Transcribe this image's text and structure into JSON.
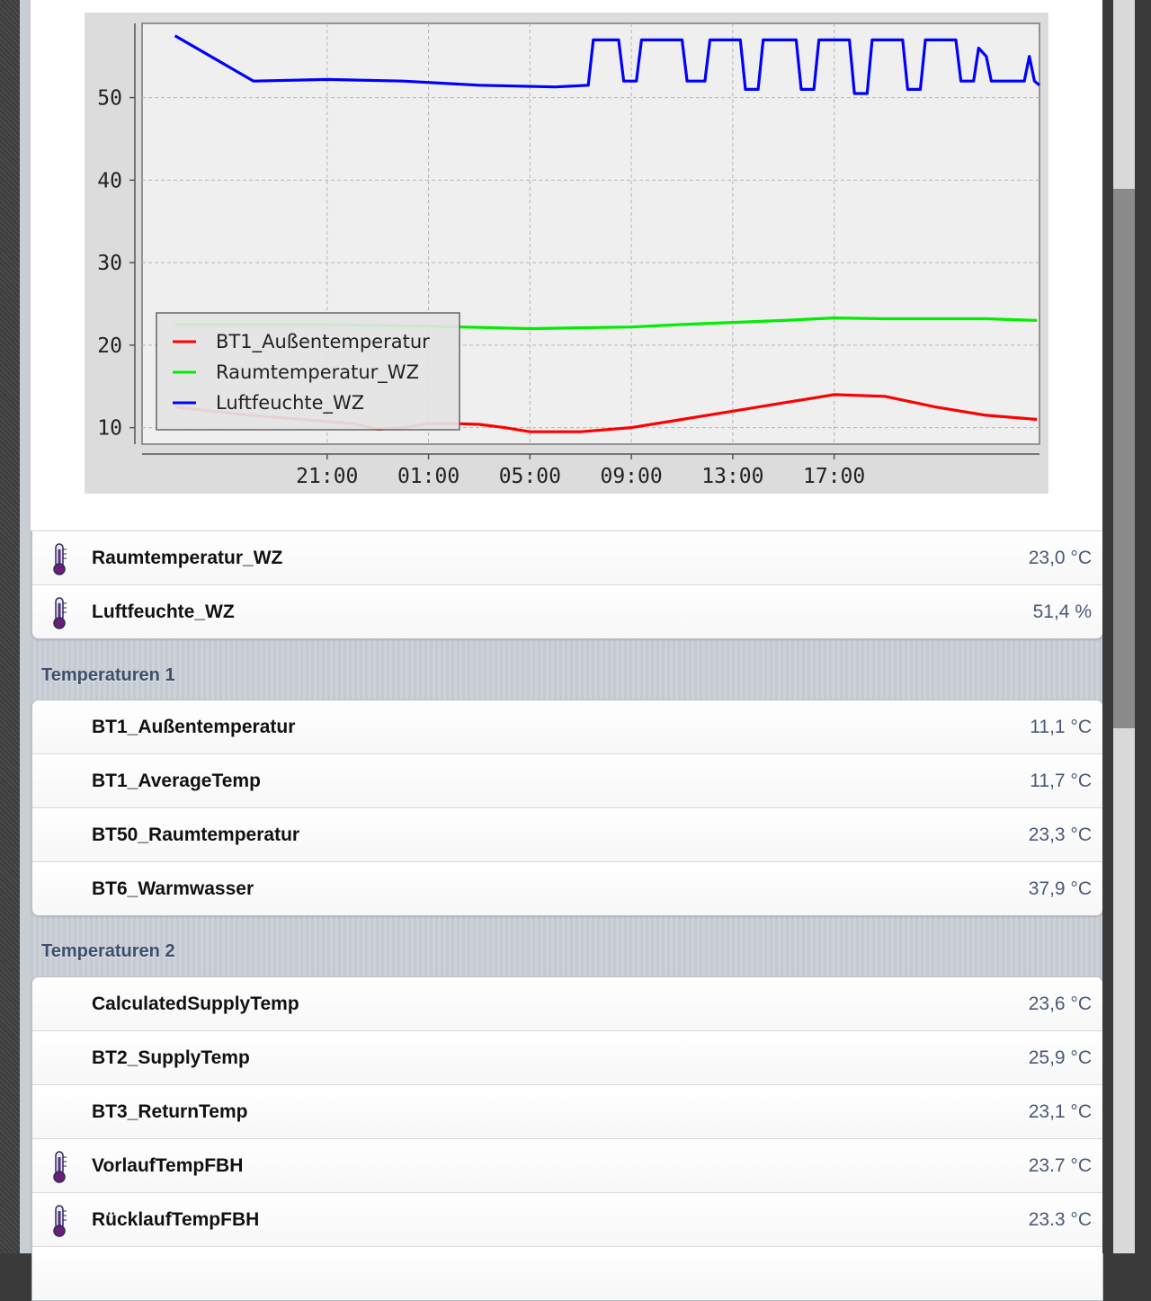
{
  "chart_data": {
    "type": "line",
    "x_ticks": [
      "21:00",
      "01:00",
      "05:00",
      "09:00",
      "13:00",
      "17:00"
    ],
    "yticks": [
      10,
      20,
      30,
      40,
      50
    ],
    "ylim": [
      8,
      59
    ],
    "grid": true,
    "legend_position": "lower-left",
    "series": [
      {
        "name": "BT1_Außentemperatur",
        "color": "#ff0000",
        "points": [
          [
            -6,
            12.5
          ],
          [
            -3,
            11.5
          ],
          [
            -1,
            11
          ],
          [
            1,
            10.5
          ],
          [
            2,
            9.8
          ],
          [
            3,
            10
          ],
          [
            4,
            10.5
          ],
          [
            5,
            10.5
          ],
          [
            6,
            10.4
          ],
          [
            7,
            10
          ],
          [
            8,
            9.5
          ],
          [
            10,
            9.5
          ],
          [
            12,
            10
          ],
          [
            14,
            11
          ],
          [
            16,
            12
          ],
          [
            18,
            13
          ],
          [
            20,
            14
          ],
          [
            22,
            13.8
          ],
          [
            24,
            12.5
          ],
          [
            26,
            11.5
          ],
          [
            28,
            11
          ]
        ]
      },
      {
        "name": "Raumtemperatur_WZ",
        "color": "#00ee00",
        "points": [
          [
            -6,
            22.5
          ],
          [
            0,
            22.5
          ],
          [
            4,
            22.3
          ],
          [
            8,
            22
          ],
          [
            12,
            22.2
          ],
          [
            14,
            22.5
          ],
          [
            18,
            23
          ],
          [
            20,
            23.3
          ],
          [
            22,
            23.2
          ],
          [
            26,
            23.2
          ],
          [
            28,
            23
          ]
        ]
      },
      {
        "name": "Luftfeuchte_WZ",
        "color": "#0000ff",
        "points": [
          [
            -6,
            57.5
          ],
          [
            -2.9,
            52
          ],
          [
            0,
            52.2
          ],
          [
            3,
            52
          ],
          [
            6,
            51.5
          ],
          [
            9,
            51.3
          ],
          [
            10.3,
            51.5
          ],
          [
            10.5,
            57
          ],
          [
            11.5,
            57
          ],
          [
            11.7,
            52
          ],
          [
            12.2,
            52
          ],
          [
            12.4,
            57
          ],
          [
            14,
            57
          ],
          [
            14.2,
            52
          ],
          [
            14.9,
            52
          ],
          [
            15.1,
            57
          ],
          [
            16.3,
            57
          ],
          [
            16.5,
            51
          ],
          [
            17,
            51
          ],
          [
            17.2,
            57
          ],
          [
            18.5,
            57
          ],
          [
            18.7,
            51
          ],
          [
            19.2,
            51
          ],
          [
            19.4,
            57
          ],
          [
            20.6,
            57
          ],
          [
            20.8,
            50.5
          ],
          [
            21.3,
            50.5
          ],
          [
            21.5,
            57
          ],
          [
            22.7,
            57
          ],
          [
            22.9,
            51
          ],
          [
            23.4,
            51
          ],
          [
            23.6,
            57
          ],
          [
            24.8,
            57
          ],
          [
            25,
            52
          ],
          [
            25.5,
            52
          ],
          [
            25.7,
            56
          ],
          [
            26,
            55
          ],
          [
            26.2,
            52
          ],
          [
            27.5,
            52
          ],
          [
            27.7,
            55
          ],
          [
            27.9,
            52
          ],
          [
            28.1,
            51.5
          ]
        ]
      }
    ]
  },
  "rows_top": [
    {
      "label": "Raumtemperatur_WZ",
      "value": "23,0 °C",
      "icon": "thermometer-icon"
    },
    {
      "label": "Luftfeuchte_WZ",
      "value": "51,4 %",
      "icon": "thermometer-icon"
    }
  ],
  "group1": {
    "title": "Temperaturen 1",
    "rows": [
      {
        "label": "BT1_Außentemperatur",
        "value": "11,1 °C"
      },
      {
        "label": "BT1_AverageTemp",
        "value": "11,7 °C"
      },
      {
        "label": "BT50_Raumtemperatur",
        "value": "23,3 °C"
      },
      {
        "label": "BT6_Warmwasser",
        "value": "37,9 °C"
      }
    ]
  },
  "group2": {
    "title": "Temperaturen 2",
    "rows": [
      {
        "label": "CalculatedSupplyTemp",
        "value": "23,6 °C"
      },
      {
        "label": "BT2_SupplyTemp",
        "value": "25,9 °C"
      },
      {
        "label": "BT3_ReturnTemp",
        "value": "23,1 °C"
      },
      {
        "label": "VorlaufTempFBH",
        "value": "23.7 °C",
        "icon": "thermometer-icon"
      },
      {
        "label": "RücklaufTempFBH",
        "value": "23.3 °C",
        "icon": "thermometer-icon"
      }
    ]
  }
}
